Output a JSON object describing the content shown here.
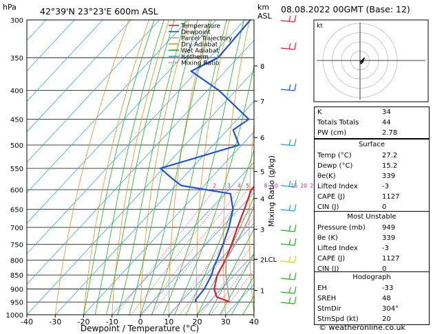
{
  "header": {
    "hpa_label": "hPa",
    "location": "42°39'N  23°23'E  600m  ASL",
    "km_label": "km",
    "asl_label": "ASL",
    "datetime": "08.08.2022  00GMT  (Base: 12)"
  },
  "chart_data": {
    "type": "line",
    "subtype": "skew-t log-p",
    "xlabel": "Dewpoint / Temperature (°C)",
    "ylabel_right": "Mixing Ratio (g/kg)",
    "x_ticks": [
      -40,
      -30,
      -20,
      -10,
      0,
      10,
      20,
      30,
      40
    ],
    "p_ticks": [
      300,
      350,
      400,
      450,
      500,
      550,
      600,
      650,
      700,
      750,
      800,
      850,
      900,
      950,
      1000
    ],
    "km_ticks": [
      {
        "label": "8",
        "p": 362
      },
      {
        "label": "7",
        "p": 418
      },
      {
        "label": "6",
        "p": 485
      },
      {
        "label": "5",
        "p": 557
      },
      {
        "label": "4",
        "p": 622
      },
      {
        "label": "3",
        "p": 705
      },
      {
        "label": "2",
        "p": 798
      },
      {
        "label": "1",
        "p": 905
      }
    ],
    "lcl_label": "LCL",
    "lcl_p": 797,
    "mixing_ratio_labels": [
      "2",
      "3",
      "4",
      "5",
      "8",
      "10",
      "16",
      "20",
      "25"
    ],
    "mixing_ratio_values": [
      2,
      3,
      4,
      5,
      8,
      10,
      16,
      20,
      25
    ],
    "legend": [
      "Temperature",
      "Dewpoint",
      "Parcel Trajectory",
      "Dry Adiabat",
      "Wet Adiabat",
      "Isotherm",
      "Mixing Ratio"
    ],
    "series": [
      {
        "name": "Temperature",
        "color": "#e8182d",
        "points": [
          [
            949,
            27.2
          ],
          [
            930,
            21
          ],
          [
            900,
            17.5
          ],
          [
            850,
            14
          ],
          [
            800,
            12
          ],
          [
            750,
            9
          ],
          [
            700,
            5.5
          ],
          [
            650,
            2
          ],
          [
            600,
            -2
          ],
          [
            580,
            -2
          ],
          [
            550,
            -4
          ],
          [
            500,
            -8
          ],
          [
            450,
            -12.5
          ],
          [
            400,
            -18.5
          ],
          [
            350,
            -26
          ],
          [
            300,
            -34
          ]
        ]
      },
      {
        "name": "Dewpoint",
        "color": "#1f4fe0",
        "points": [
          [
            949,
            15.2
          ],
          [
            940,
            14.5
          ],
          [
            900,
            14
          ],
          [
            850,
            12
          ],
          [
            820,
            10
          ],
          [
            800,
            9
          ],
          [
            750,
            6
          ],
          [
            700,
            2.5
          ],
          [
            650,
            -2
          ],
          [
            610,
            -8
          ],
          [
            590,
            -28
          ],
          [
            575,
            -33
          ],
          [
            550,
            -41
          ],
          [
            500,
            -21
          ],
          [
            470,
            -28
          ],
          [
            450,
            -26
          ],
          [
            400,
            -46
          ],
          [
            370,
            -62
          ],
          [
            350,
            -57
          ],
          [
            300,
            -58
          ]
        ]
      },
      {
        "name": "Parcel Trajectory",
        "color": "#a7a7a7",
        "points": [
          [
            949,
            27.2
          ],
          [
            850,
            17
          ],
          [
            797,
            12
          ],
          [
            750,
            10.3
          ],
          [
            700,
            8
          ],
          [
            650,
            5
          ],
          [
            600,
            1.5
          ],
          [
            550,
            -2.2
          ],
          [
            500,
            -6.5
          ],
          [
            450,
            -11.5
          ],
          [
            400,
            -17
          ],
          [
            350,
            -24
          ],
          [
            300,
            -31.5
          ]
        ]
      }
    ]
  },
  "hodograph": {
    "label": "kt"
  },
  "indices": {
    "rows": [
      {
        "label": "K",
        "value": "34"
      },
      {
        "label": "Totals Totals",
        "value": "44"
      },
      {
        "label": "PW (cm)",
        "value": "2.78"
      }
    ]
  },
  "surface": {
    "title": "Surface",
    "rows": [
      {
        "label": "Temp (°C)",
        "value": "27.2"
      },
      {
        "label": "Dewp (°C)",
        "value": "15.2"
      },
      {
        "label": "θe(K)",
        "value": "339"
      },
      {
        "label": "Lifted Index",
        "value": "-3"
      },
      {
        "label": "CAPE (J)",
        "value": "1127"
      },
      {
        "label": "CIN (J)",
        "value": "0"
      }
    ]
  },
  "most_unstable": {
    "title": "Most Unstable",
    "rows": [
      {
        "label": "Pressure (mb)",
        "value": "949"
      },
      {
        "label": "θe (K)",
        "value": "339"
      },
      {
        "label": "Lifted Index",
        "value": "-3"
      },
      {
        "label": "CAPE (J)",
        "value": "1127"
      },
      {
        "label": "CIN (J)",
        "value": "0"
      }
    ]
  },
  "hodograph_table": {
    "title": "Hodograph",
    "rows": [
      {
        "label": "EH",
        "value": "-33"
      },
      {
        "label": "SREH",
        "value": "48"
      },
      {
        "label": "StmDir",
        "value": "304°"
      },
      {
        "label": "StmSpd (kt)",
        "value": "20"
      }
    ]
  },
  "footer": {
    "copyright": "© weatheronline.co.uk"
  }
}
